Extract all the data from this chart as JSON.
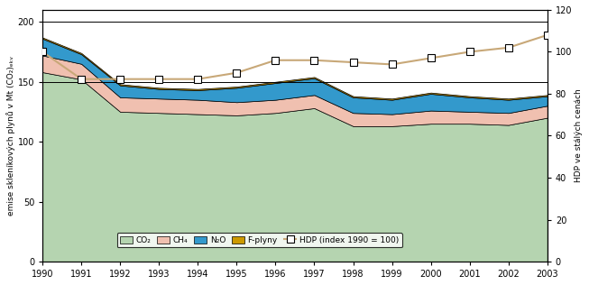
{
  "years": [
    1990,
    1991,
    1992,
    1993,
    1994,
    1995,
    1996,
    1997,
    1998,
    1999,
    2000,
    2001,
    2002,
    2003
  ],
  "CO2": [
    158,
    152,
    125,
    124,
    123,
    122,
    124,
    128,
    113,
    113,
    115,
    115,
    114,
    120
  ],
  "CH4": [
    14,
    13,
    12,
    12,
    12,
    11,
    11,
    11,
    11,
    10,
    11,
    10,
    10,
    10
  ],
  "N2O": [
    14,
    8,
    10,
    8,
    8,
    12,
    14,
    14,
    13,
    12,
    14,
    12,
    11,
    8
  ],
  "Fplyny": [
    1,
    1,
    1,
    1,
    1,
    1,
    1,
    1,
    1,
    1,
    1,
    1,
    1,
    1
  ],
  "HDP": [
    100,
    87,
    87,
    87,
    87,
    90,
    96,
    96,
    95,
    94,
    97,
    100,
    102,
    108
  ],
  "CO2_color": "#b5d4b0",
  "CH4_color": "#f0c0b0",
  "N2O_color": "#3399cc",
  "Fplyny_color": "#cc9900",
  "HDP_color": "#c8a878",
  "left_ylabel": "emise skleníkových plynů v Mt (CO₂)ₑₖᵥ",
  "right_ylabel": "HDP ve stálých cenách",
  "ylim_left": [
    0,
    210
  ],
  "ylim_right": [
    0,
    120
  ],
  "yticks_left": [
    0,
    50,
    100,
    150,
    200
  ],
  "yticks_right": [
    0,
    20,
    40,
    60,
    80,
    100,
    120
  ],
  "legend_labels": [
    "CO₂",
    "CH₄",
    "N₂O",
    "F-plyny",
    "HDP (index 1990 = 100)"
  ],
  "hline_values": [
    150,
    200
  ],
  "background_color": "#ffffff",
  "edgecolor": "#000000"
}
